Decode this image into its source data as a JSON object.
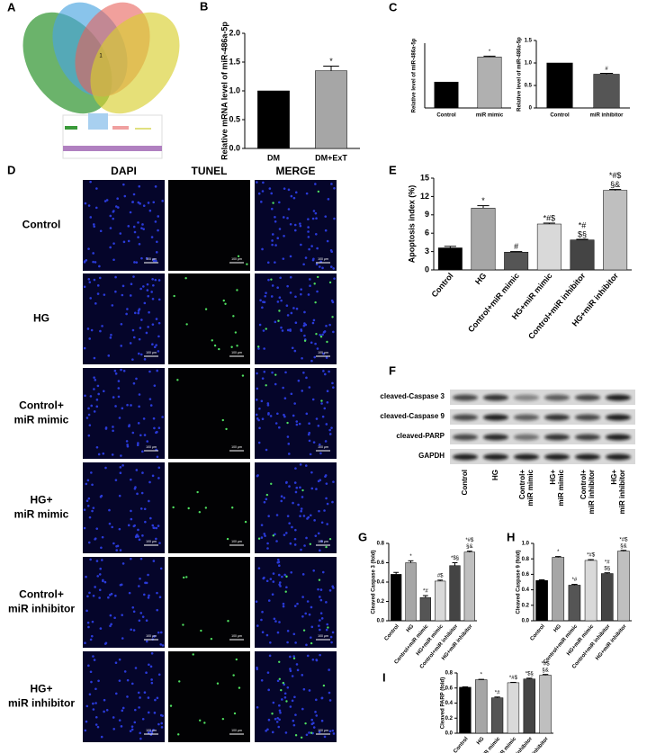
{
  "panel_labels": [
    "A",
    "B",
    "C",
    "D",
    "E",
    "F",
    "G",
    "H",
    "I"
  ],
  "venn": {
    "center_label": "1"
  },
  "microscopy": {
    "columns": [
      "DAPI",
      "TUNEL",
      "MERGE"
    ],
    "rows": [
      [
        "Control"
      ],
      [
        "HG"
      ],
      [
        "Control+",
        "miR mimic"
      ],
      [
        "HG+",
        "miR mimic"
      ],
      [
        "Control+",
        "miR inhibitor"
      ],
      [
        "HG+",
        "miR inhibitor"
      ]
    ],
    "scale_bar": "100 μm"
  },
  "western_blot": {
    "bands": [
      "cleaved-Caspase 3",
      "cleaved-Caspase 9",
      "cleaved-PARP",
      "GAPDH"
    ],
    "lanes": [
      [
        "Control"
      ],
      [
        "HG"
      ],
      [
        "Control+",
        "miR mimic"
      ],
      [
        "HG+",
        "miR mimic"
      ],
      [
        "Control+",
        "miR inhibitor"
      ],
      [
        "HG+",
        "miR inhibitor"
      ]
    ]
  },
  "chart_data": [
    {
      "type": "bar",
      "ylabel": "Relative mRNA level of miR-486a-5p",
      "categories": [
        "DM",
        "DM+ExT"
      ],
      "values": [
        1.0,
        1.35
      ],
      "errors": [
        0,
        0.08
      ],
      "colors": [
        "#000000",
        "#a6a6a6"
      ],
      "annotations": [
        [],
        [
          "*"
        ]
      ],
      "ylim": [
        0,
        2.0
      ],
      "yticks": [
        {
          "value": 0,
          "label": "0.0"
        },
        {
          "value": 0.5,
          "label": "0.5"
        },
        {
          "value": 1,
          "label": "1.0"
        },
        {
          "value": 1.5,
          "label": "1.5"
        },
        {
          "value": 2,
          "label": "2.0"
        }
      ]
    },
    {
      "type": "bar",
      "ylabel": "Relative level of miR-486a-5p",
      "categories": [
        "Control",
        "miR mimic"
      ],
      "values": [
        1.0,
        1.97
      ],
      "errors": [
        0,
        0.03
      ],
      "colors": [
        "#000000",
        "#b0b0b0"
      ],
      "annotations": [
        [],
        [
          "*"
        ]
      ],
      "ylim": [
        0,
        2.5
      ]
    },
    {
      "type": "bar",
      "ylabel": "Relative level of miR-486a-5p",
      "categories": [
        "Control",
        "miR inhibitor"
      ],
      "values": [
        1.0,
        0.75
      ],
      "errors": [
        0,
        0.02
      ],
      "colors": [
        "#000000",
        "#555555"
      ],
      "annotations": [
        [],
        [
          "#"
        ]
      ],
      "ylim": [
        0,
        1.5
      ],
      "yticks": [
        0,
        {
          "value": 0.5,
          "label": "0.5"
        },
        {
          "value": 1,
          "label": "1.0"
        },
        {
          "value": 1.5,
          "label": "1.5"
        }
      ]
    },
    {
      "type": "bar",
      "ylabel": "Apoptosis index (%)",
      "categories": [
        "Control",
        "HG",
        "Control+miR mimic",
        "HG+miR mimic",
        "Control+miR inhibitor",
        "HG+miR inhibitor"
      ],
      "values": [
        3.6,
        10.1,
        2.9,
        7.5,
        4.9,
        13.0
      ],
      "errors": [
        0.25,
        0.4,
        0.1,
        0.15,
        0.1,
        0.15
      ],
      "colors": [
        "#000000",
        "#a6a6a6",
        "#555555",
        "#d9d9d9",
        "#444444",
        "#bfbfbf"
      ],
      "annotations": [
        [],
        [
          "*"
        ],
        [
          "#"
        ],
        [
          "*#$"
        ],
        [
          "*#",
          "$§"
        ],
        [
          "*#$",
          "§&"
        ]
      ],
      "ylim": [
        0,
        15
      ],
      "yticks": [
        0,
        3,
        6,
        9,
        12,
        15
      ]
    },
    {
      "type": "bar",
      "ylabel": "Cleaved Caspase 3 (fold)",
      "categories": [
        "Control",
        "HG",
        "Control+miR mimic",
        "HG+miR mimic",
        "Control+miR inhibitor",
        "HG+miR inhibitor"
      ],
      "values": [
        0.48,
        0.6,
        0.24,
        0.41,
        0.57,
        0.71
      ],
      "errors": [
        0.02,
        0.02,
        0.02,
        0.01,
        0.03,
        0.01
      ],
      "colors": [
        "#000000",
        "#a6a6a6",
        "#555555",
        "#d9d9d9",
        "#444444",
        "#bfbfbf"
      ],
      "annotations": [
        [],
        [
          "*"
        ],
        [
          "*#"
        ],
        [
          "#$"
        ],
        [
          "*$§"
        ],
        [
          "*#$",
          "§&"
        ]
      ],
      "ylim": [
        0,
        0.8
      ],
      "yticks": [
        {
          "value": 0,
          "label": "0.0"
        },
        0.2,
        0.4,
        0.6,
        0.8
      ]
    },
    {
      "type": "bar",
      "ylabel": "Cleaved Caspase 9 (fold)",
      "categories": [
        "Control",
        "HG",
        "Control+miR mimic",
        "HG+miR mimic",
        "Control+miR inhibitor",
        "HG+miR inhibitor"
      ],
      "values": [
        0.52,
        0.82,
        0.46,
        0.78,
        0.61,
        0.9
      ],
      "errors": [
        0.01,
        0.01,
        0.01,
        0.01,
        0.01,
        0.01
      ],
      "colors": [
        "#000000",
        "#a6a6a6",
        "#555555",
        "#d9d9d9",
        "#444444",
        "#bfbfbf"
      ],
      "annotations": [
        [],
        [
          "*"
        ],
        [
          "*#"
        ],
        [
          "*#$"
        ],
        [
          "*#",
          "$§"
        ],
        [
          "*#$",
          "§&"
        ]
      ],
      "ylim": [
        0,
        1.0
      ],
      "yticks": [
        {
          "value": 0,
          "label": "0.0"
        },
        0.2,
        0.4,
        0.6,
        0.8,
        {
          "value": 1,
          "label": "1.0"
        }
      ]
    },
    {
      "type": "bar",
      "ylabel": "Cleaved PARP (fold)",
      "categories": [
        "Control",
        "HG",
        "Control+miR mimic",
        "HG+miR mimic",
        "Control+miR inhibitor",
        "HG+miR inhibitor"
      ],
      "values": [
        0.61,
        0.71,
        0.47,
        0.67,
        0.72,
        0.77
      ],
      "errors": [
        0.005,
        0.005,
        0.01,
        0.005,
        0.01,
        0.01
      ],
      "colors": [
        "#000000",
        "#a6a6a6",
        "#555555",
        "#d9d9d9",
        "#444444",
        "#bfbfbf"
      ],
      "annotations": [
        [],
        [
          "*"
        ],
        [
          "*#"
        ],
        [
          "*#$"
        ],
        [
          "*$§"
        ],
        [
          "*#$",
          "§&"
        ]
      ],
      "ylim": [
        0,
        0.8
      ],
      "yticks": [
        {
          "value": 0,
          "label": "0.0"
        },
        0.2,
        0.4,
        0.6,
        0.8
      ]
    }
  ]
}
